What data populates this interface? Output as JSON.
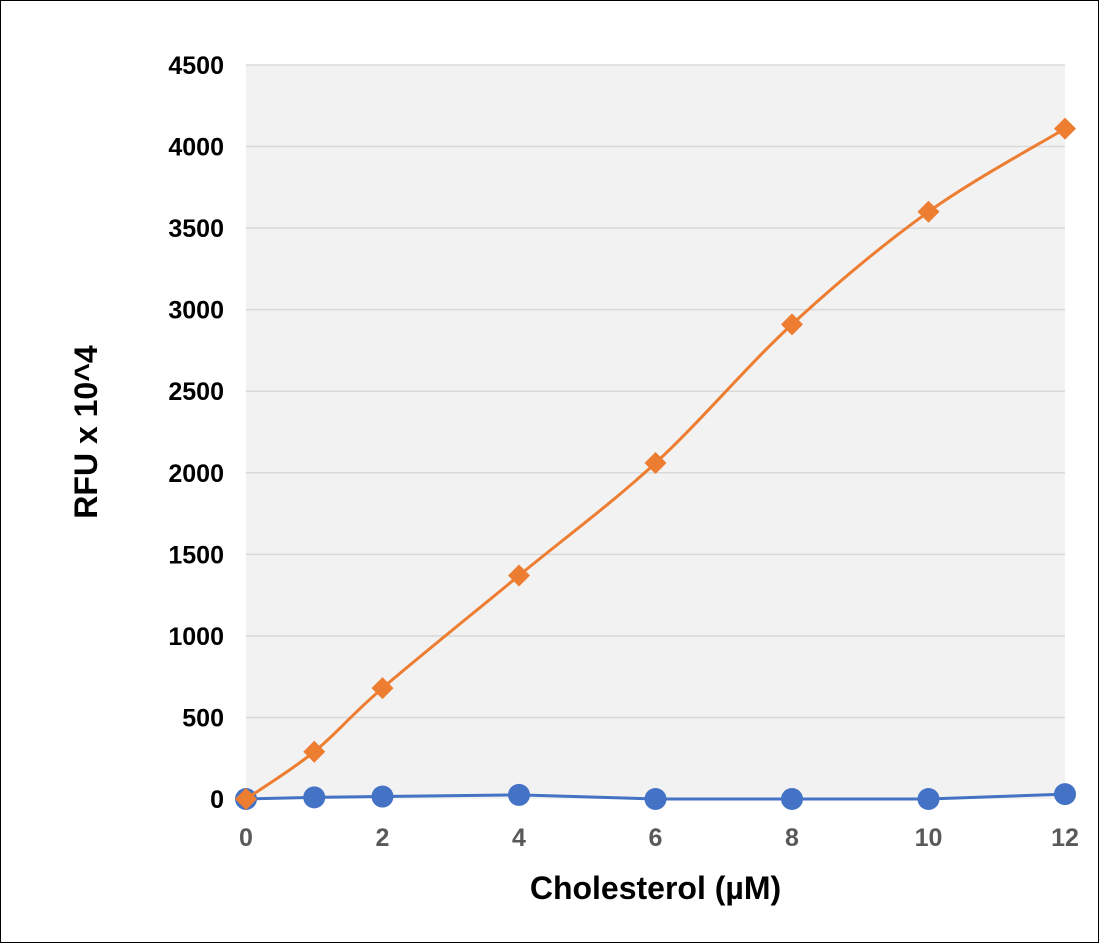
{
  "chart_data": {
    "type": "line",
    "title": "",
    "xlabel": "Cholesterol (µM)",
    "ylabel": "RFU x 10^4",
    "x_categories": [
      "0",
      "1",
      "2",
      "4",
      "6",
      "8",
      "10",
      "12"
    ],
    "x_tick_labels": [
      "0",
      "2",
      "4",
      "6",
      "8",
      "10",
      "12"
    ],
    "ylim": [
      0,
      4500
    ],
    "y_ticks": [
      0,
      500,
      1000,
      1500,
      2000,
      2500,
      3000,
      3500,
      4000,
      4500
    ],
    "grid": true,
    "legend": "none",
    "series": [
      {
        "marker": "diamond",
        "color": "#ED7D31",
        "smooth": true,
        "x": [
          0,
          1,
          2,
          4,
          6,
          8,
          10,
          12
        ],
        "values": [
          0,
          290,
          680,
          1370,
          2060,
          2910,
          3600,
          4110
        ]
      },
      {
        "marker": "circle",
        "color": "#4472C4",
        "smooth": false,
        "x": [
          0,
          1,
          2,
          4,
          6,
          8,
          10,
          12
        ],
        "values": [
          0,
          10,
          15,
          25,
          0,
          0,
          0,
          30
        ]
      }
    ],
    "plot_background": "#F2F2F2",
    "gridline_color": "#D9D9D9"
  }
}
